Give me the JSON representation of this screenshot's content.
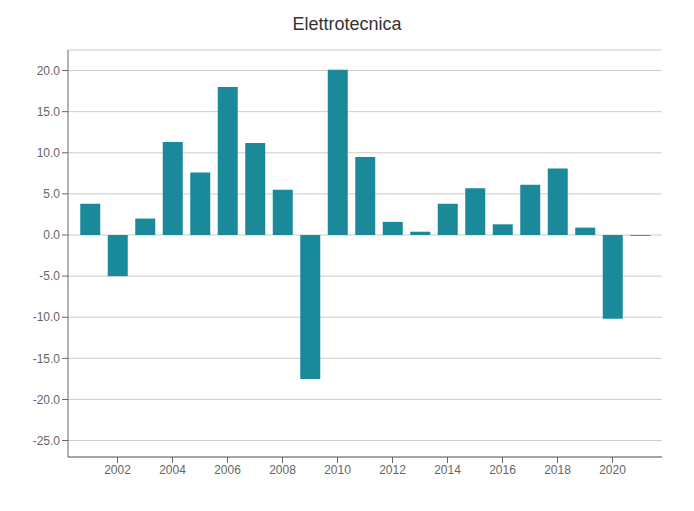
{
  "chart_data": {
    "type": "bar",
    "title": "Elettrotecnica",
    "x": [
      2001,
      2002,
      2003,
      2004,
      2005,
      2006,
      2007,
      2008,
      2009,
      2010,
      2011,
      2012,
      2013,
      2014,
      2015,
      2016,
      2017,
      2018,
      2019,
      2020,
      2021
    ],
    "values": [
      3.8,
      -5.0,
      2.0,
      11.3,
      7.6,
      18.0,
      11.2,
      5.5,
      -17.5,
      20.1,
      9.5,
      1.6,
      0.4,
      3.8,
      5.7,
      1.3,
      6.1,
      8.1,
      0.9,
      -10.2,
      -0.1
    ],
    "color": "#1a8a9a",
    "xlim": [
      2000.2,
      2021.8
    ],
    "xticks": [
      2002,
      2004,
      2006,
      2008,
      2010,
      2012,
      2014,
      2016,
      2018,
      2020
    ],
    "ylim": [
      -27.0,
      22.5
    ],
    "yticks": [
      {
        "value": -25.0,
        "label": "-25.0"
      },
      {
        "value": -20.0,
        "label": "-20.0"
      },
      {
        "value": -15.0,
        "label": "-15.0"
      },
      {
        "value": -10.0,
        "label": "-10.0"
      },
      {
        "value": -5.0,
        "label": "-5.0"
      },
      {
        "value": 0.0,
        "label": "0.0"
      },
      {
        "value": 5.0,
        "label": "5.0"
      },
      {
        "value": 10.0,
        "label": "10.0"
      },
      {
        "value": 15.0,
        "label": "15.0"
      },
      {
        "value": 20.0,
        "label": "20.0"
      }
    ],
    "grid": true
  }
}
